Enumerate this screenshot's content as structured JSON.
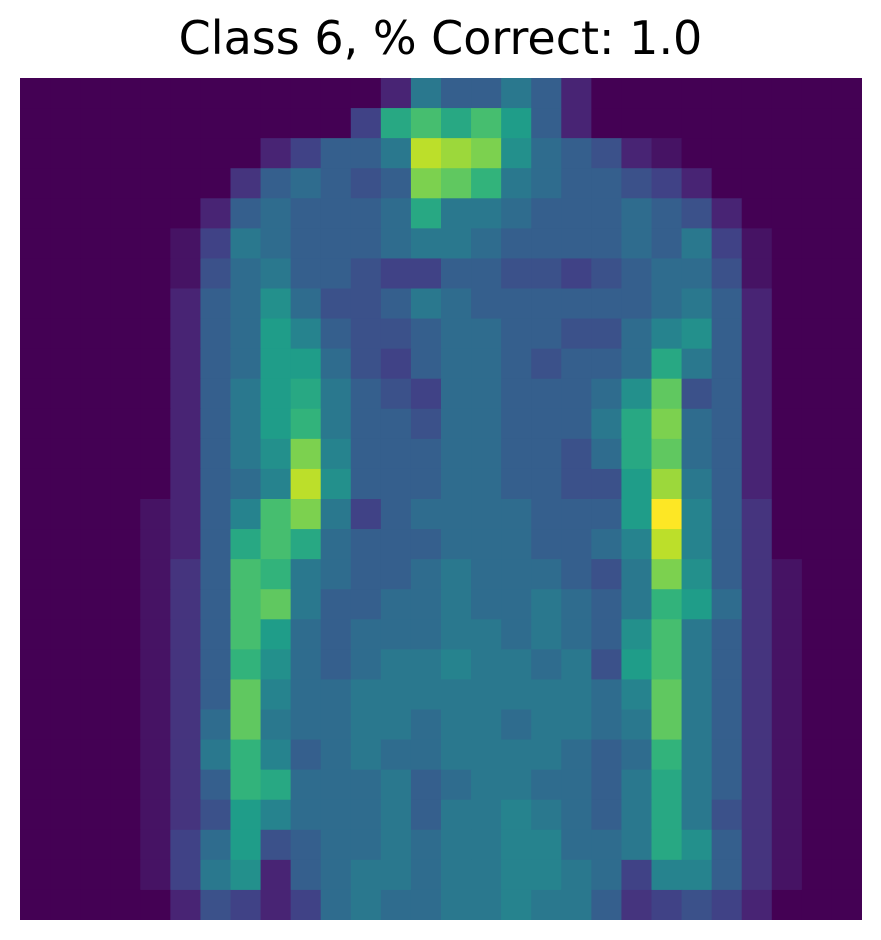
{
  "chart_data": {
    "type": "heatmap",
    "title": "Class 6, % Correct: 1.0",
    "rows": 28,
    "cols": 28,
    "vmin": 0,
    "vmax": 1,
    "colormap": "viridis",
    "axes_visible": false,
    "grid": false,
    "values": [
      [
        0.0,
        0.0,
        0.0,
        0.0,
        0.0,
        0.0,
        0.0,
        0.0,
        0.0,
        0.0,
        0.0,
        0.0,
        0.1,
        0.4,
        0.3,
        0.3,
        0.4,
        0.3,
        0.1,
        0.0,
        0.0,
        0.0,
        0.0,
        0.0,
        0.0,
        0.0,
        0.0,
        0.0
      ],
      [
        0.0,
        0.0,
        0.0,
        0.0,
        0.0,
        0.0,
        0.0,
        0.0,
        0.0,
        0.0,
        0.0,
        0.2,
        0.6,
        0.7,
        0.6,
        0.7,
        0.55,
        0.3,
        0.1,
        0.0,
        0.0,
        0.0,
        0.0,
        0.0,
        0.0,
        0.0,
        0.0,
        0.0
      ],
      [
        0.0,
        0.0,
        0.0,
        0.0,
        0.0,
        0.0,
        0.0,
        0.0,
        0.1,
        0.2,
        0.3,
        0.3,
        0.4,
        0.9,
        0.85,
        0.8,
        0.5,
        0.35,
        0.3,
        0.25,
        0.1,
        0.05,
        0.0,
        0.0,
        0.0,
        0.0,
        0.0,
        0.0
      ],
      [
        0.0,
        0.0,
        0.0,
        0.0,
        0.0,
        0.0,
        0.0,
        0.15,
        0.3,
        0.35,
        0.3,
        0.25,
        0.3,
        0.8,
        0.75,
        0.65,
        0.4,
        0.35,
        0.3,
        0.3,
        0.25,
        0.2,
        0.1,
        0.0,
        0.0,
        0.0,
        0.0,
        0.0
      ],
      [
        0.0,
        0.0,
        0.0,
        0.0,
        0.0,
        0.0,
        0.1,
        0.3,
        0.35,
        0.3,
        0.3,
        0.3,
        0.35,
        0.6,
        0.4,
        0.4,
        0.35,
        0.3,
        0.3,
        0.3,
        0.35,
        0.3,
        0.25,
        0.1,
        0.0,
        0.0,
        0.0,
        0.0
      ],
      [
        0.0,
        0.0,
        0.0,
        0.0,
        0.0,
        0.05,
        0.2,
        0.4,
        0.35,
        0.3,
        0.3,
        0.3,
        0.35,
        0.4,
        0.4,
        0.35,
        0.3,
        0.3,
        0.3,
        0.3,
        0.35,
        0.3,
        0.4,
        0.2,
        0.05,
        0.0,
        0.0,
        0.0
      ],
      [
        0.0,
        0.0,
        0.0,
        0.0,
        0.0,
        0.05,
        0.25,
        0.35,
        0.4,
        0.3,
        0.3,
        0.25,
        0.2,
        0.2,
        0.3,
        0.3,
        0.25,
        0.25,
        0.2,
        0.25,
        0.3,
        0.35,
        0.35,
        0.25,
        0.05,
        0.0,
        0.0,
        0.0
      ],
      [
        0.0,
        0.0,
        0.0,
        0.0,
        0.0,
        0.1,
        0.3,
        0.35,
        0.5,
        0.35,
        0.25,
        0.25,
        0.3,
        0.4,
        0.35,
        0.3,
        0.3,
        0.3,
        0.3,
        0.3,
        0.3,
        0.35,
        0.4,
        0.3,
        0.1,
        0.0,
        0.0,
        0.0
      ],
      [
        0.0,
        0.0,
        0.0,
        0.0,
        0.0,
        0.1,
        0.3,
        0.35,
        0.55,
        0.45,
        0.3,
        0.25,
        0.25,
        0.3,
        0.35,
        0.35,
        0.3,
        0.3,
        0.25,
        0.25,
        0.35,
        0.45,
        0.5,
        0.3,
        0.1,
        0.0,
        0.0,
        0.0
      ],
      [
        0.0,
        0.0,
        0.0,
        0.0,
        0.0,
        0.1,
        0.3,
        0.35,
        0.55,
        0.55,
        0.35,
        0.25,
        0.2,
        0.3,
        0.35,
        0.35,
        0.3,
        0.25,
        0.3,
        0.3,
        0.35,
        0.6,
        0.4,
        0.3,
        0.1,
        0.0,
        0.0,
        0.0
      ],
      [
        0.0,
        0.0,
        0.0,
        0.0,
        0.0,
        0.1,
        0.3,
        0.4,
        0.55,
        0.6,
        0.4,
        0.3,
        0.25,
        0.2,
        0.35,
        0.35,
        0.3,
        0.3,
        0.3,
        0.35,
        0.5,
        0.75,
        0.25,
        0.3,
        0.1,
        0.0,
        0.0,
        0.0
      ],
      [
        0.0,
        0.0,
        0.0,
        0.0,
        0.0,
        0.1,
        0.3,
        0.4,
        0.55,
        0.65,
        0.4,
        0.3,
        0.3,
        0.25,
        0.35,
        0.35,
        0.3,
        0.3,
        0.3,
        0.4,
        0.6,
        0.8,
        0.35,
        0.3,
        0.1,
        0.0,
        0.0,
        0.0
      ],
      [
        0.0,
        0.0,
        0.0,
        0.0,
        0.0,
        0.1,
        0.3,
        0.4,
        0.5,
        0.8,
        0.45,
        0.3,
        0.3,
        0.3,
        0.35,
        0.35,
        0.3,
        0.3,
        0.25,
        0.35,
        0.6,
        0.75,
        0.35,
        0.3,
        0.1,
        0.0,
        0.0,
        0.0
      ],
      [
        0.0,
        0.0,
        0.0,
        0.0,
        0.0,
        0.1,
        0.3,
        0.35,
        0.45,
        0.9,
        0.5,
        0.3,
        0.3,
        0.3,
        0.35,
        0.35,
        0.3,
        0.3,
        0.25,
        0.25,
        0.55,
        0.85,
        0.4,
        0.3,
        0.1,
        0.0,
        0.0,
        0.0
      ],
      [
        0.0,
        0.0,
        0.0,
        0.0,
        0.05,
        0.1,
        0.3,
        0.45,
        0.7,
        0.8,
        0.4,
        0.2,
        0.3,
        0.35,
        0.35,
        0.35,
        0.35,
        0.3,
        0.3,
        0.3,
        0.55,
        1.0,
        0.45,
        0.3,
        0.15,
        0.0,
        0.0,
        0.0
      ],
      [
        0.0,
        0.0,
        0.0,
        0.0,
        0.05,
        0.1,
        0.3,
        0.6,
        0.7,
        0.6,
        0.35,
        0.3,
        0.3,
        0.3,
        0.35,
        0.35,
        0.35,
        0.3,
        0.3,
        0.35,
        0.45,
        0.9,
        0.45,
        0.3,
        0.15,
        0.0,
        0.0,
        0.0
      ],
      [
        0.0,
        0.0,
        0.0,
        0.0,
        0.05,
        0.15,
        0.3,
        0.7,
        0.65,
        0.4,
        0.35,
        0.3,
        0.3,
        0.35,
        0.4,
        0.35,
        0.35,
        0.35,
        0.3,
        0.25,
        0.4,
        0.8,
        0.5,
        0.3,
        0.15,
        0.05,
        0.0,
        0.0
      ],
      [
        0.0,
        0.0,
        0.0,
        0.0,
        0.05,
        0.15,
        0.3,
        0.7,
        0.75,
        0.4,
        0.3,
        0.3,
        0.35,
        0.35,
        0.4,
        0.35,
        0.35,
        0.4,
        0.35,
        0.3,
        0.4,
        0.65,
        0.55,
        0.35,
        0.15,
        0.05,
        0.0,
        0.0
      ],
      [
        0.0,
        0.0,
        0.0,
        0.0,
        0.05,
        0.15,
        0.3,
        0.7,
        0.55,
        0.35,
        0.3,
        0.35,
        0.35,
        0.35,
        0.4,
        0.4,
        0.35,
        0.4,
        0.35,
        0.3,
        0.5,
        0.7,
        0.4,
        0.3,
        0.15,
        0.05,
        0.0,
        0.0
      ],
      [
        0.0,
        0.0,
        0.0,
        0.0,
        0.05,
        0.15,
        0.3,
        0.65,
        0.5,
        0.35,
        0.3,
        0.35,
        0.4,
        0.4,
        0.45,
        0.4,
        0.4,
        0.35,
        0.4,
        0.25,
        0.55,
        0.7,
        0.4,
        0.3,
        0.15,
        0.05,
        0.0,
        0.0
      ],
      [
        0.0,
        0.0,
        0.0,
        0.0,
        0.05,
        0.15,
        0.3,
        0.75,
        0.45,
        0.35,
        0.35,
        0.4,
        0.4,
        0.4,
        0.4,
        0.4,
        0.4,
        0.4,
        0.4,
        0.35,
        0.45,
        0.75,
        0.4,
        0.3,
        0.15,
        0.05,
        0.0,
        0.0
      ],
      [
        0.0,
        0.0,
        0.0,
        0.0,
        0.05,
        0.15,
        0.35,
        0.75,
        0.4,
        0.35,
        0.35,
        0.4,
        0.4,
        0.35,
        0.4,
        0.4,
        0.35,
        0.4,
        0.4,
        0.35,
        0.4,
        0.75,
        0.4,
        0.3,
        0.15,
        0.05,
        0.0,
        0.0
      ],
      [
        0.0,
        0.0,
        0.0,
        0.0,
        0.05,
        0.15,
        0.4,
        0.65,
        0.45,
        0.3,
        0.35,
        0.4,
        0.35,
        0.35,
        0.4,
        0.4,
        0.4,
        0.4,
        0.35,
        0.3,
        0.35,
        0.65,
        0.4,
        0.3,
        0.15,
        0.05,
        0.0,
        0.0
      ],
      [
        0.0,
        0.0,
        0.0,
        0.0,
        0.05,
        0.15,
        0.3,
        0.65,
        0.6,
        0.35,
        0.35,
        0.35,
        0.4,
        0.3,
        0.35,
        0.4,
        0.4,
        0.35,
        0.35,
        0.3,
        0.4,
        0.6,
        0.4,
        0.3,
        0.15,
        0.05,
        0.0,
        0.0
      ],
      [
        0.0,
        0.0,
        0.0,
        0.0,
        0.05,
        0.15,
        0.25,
        0.55,
        0.45,
        0.35,
        0.35,
        0.35,
        0.4,
        0.3,
        0.4,
        0.4,
        0.45,
        0.4,
        0.35,
        0.3,
        0.4,
        0.6,
        0.4,
        0.25,
        0.15,
        0.05,
        0.0,
        0.0
      ],
      [
        0.0,
        0.0,
        0.0,
        0.0,
        0.05,
        0.2,
        0.35,
        0.55,
        0.25,
        0.3,
        0.35,
        0.35,
        0.4,
        0.35,
        0.4,
        0.4,
        0.45,
        0.45,
        0.35,
        0.35,
        0.4,
        0.6,
        0.5,
        0.3,
        0.15,
        0.05,
        0.0,
        0.0
      ],
      [
        0.0,
        0.0,
        0.0,
        0.0,
        0.05,
        0.2,
        0.4,
        0.5,
        0.1,
        0.3,
        0.35,
        0.4,
        0.4,
        0.35,
        0.4,
        0.4,
        0.45,
        0.45,
        0.4,
        0.35,
        0.2,
        0.45,
        0.45,
        0.3,
        0.15,
        0.05,
        0.0,
        0.0
      ],
      [
        0.0,
        0.0,
        0.0,
        0.0,
        0.0,
        0.1,
        0.25,
        0.2,
        0.1,
        0.2,
        0.35,
        0.4,
        0.35,
        0.35,
        0.4,
        0.4,
        0.45,
        0.4,
        0.4,
        0.3,
        0.15,
        0.2,
        0.25,
        0.2,
        0.1,
        0.0,
        0.0,
        0.0
      ]
    ],
    "colors": {
      "viridis_stops": [
        "#440154",
        "#482878",
        "#3e4989",
        "#31688e",
        "#26828e",
        "#1f9e89",
        "#35b779",
        "#6ece58",
        "#b5de2b",
        "#fde725"
      ],
      "background": "#ffffff",
      "title_color": "#000000"
    }
  }
}
